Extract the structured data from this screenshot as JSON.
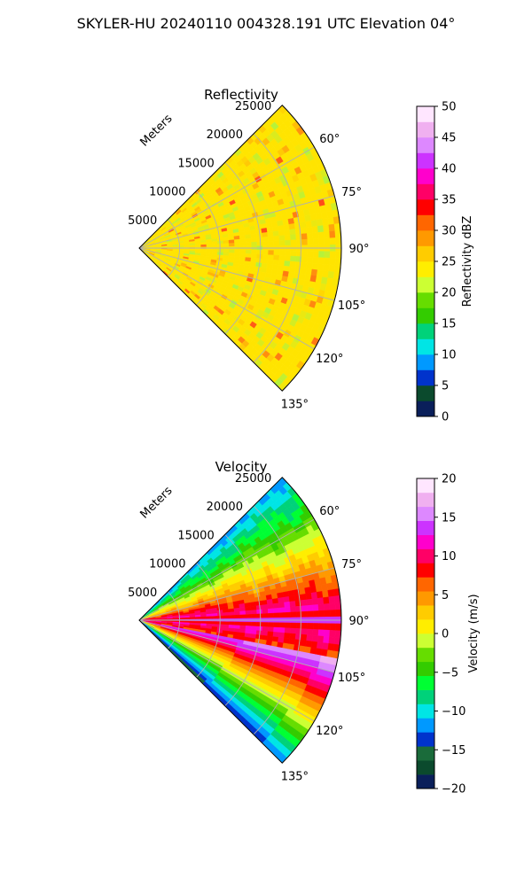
{
  "suptitle": "SKYLER-HU  20240110  004328.191 UTC Elevation 04°",
  "chart_data": [
    {
      "type": "heatmap",
      "title": "Reflectivity",
      "projection": "polar sector (PPI)",
      "radial_label": "Meters",
      "radial_ticks": [
        "5000",
        "10000",
        "15000",
        "20000",
        "25000"
      ],
      "radial_tick_values": [
        5000,
        10000,
        15000,
        20000,
        25000
      ],
      "r_max": 25000,
      "angle_range_deg": [
        45,
        135
      ],
      "angle_ticks": [
        "60°",
        "75°",
        "90°",
        "105°",
        "120°",
        "135°"
      ],
      "angle_tick_values": [
        60,
        75,
        90,
        105,
        120,
        135
      ],
      "grid": true,
      "colorbar": {
        "label": "Reflectivity dBZ",
        "range": [
          0,
          50
        ],
        "ticks": [
          "0",
          "5",
          "10",
          "15",
          "20",
          "25",
          "30",
          "35",
          "40",
          "45",
          "50"
        ],
        "tick_values": [
          0,
          5,
          10,
          15,
          20,
          25,
          30,
          35,
          40,
          45,
          50
        ],
        "colors": [
          "#0a1f5a",
          "#0b4a2d",
          "#0033cc",
          "#0099ff",
          "#00e5e5",
          "#00d27a",
          "#33cc00",
          "#66dd00",
          "#ccff33",
          "#ffee00",
          "#ffcc00",
          "#ff9900",
          "#ff6600",
          "#ff0000",
          "#ff0066",
          "#ff00cc",
          "#cc33ff",
          "#dd88ff",
          "#f0b0f0",
          "#ffe6ff"
        ]
      },
      "field_description_colors": {
        "base": "#ffe400",
        "low": "#b6f23a",
        "high": "#ff4a1a"
      }
    },
    {
      "type": "heatmap",
      "title": "Velocity",
      "projection": "polar sector (PPI)",
      "radial_label": "Meters",
      "radial_ticks": [
        "5000",
        "10000",
        "15000",
        "20000",
        "25000"
      ],
      "radial_tick_values": [
        5000,
        10000,
        15000,
        20000,
        25000
      ],
      "r_max": 25000,
      "angle_range_deg": [
        45,
        135
      ],
      "angle_ticks": [
        "60°",
        "75°",
        "90°",
        "105°",
        "120°",
        "135°"
      ],
      "angle_tick_values": [
        60,
        75,
        90,
        105,
        120,
        135
      ],
      "grid": true,
      "colorbar": {
        "label": "Velocity (m/s)",
        "range": [
          -20,
          20
        ],
        "ticks": [
          "−20",
          "−15",
          "−10",
          "−5",
          "0",
          "5",
          "10",
          "15",
          "20"
        ],
        "tick_values": [
          -20,
          -15,
          -10,
          -5,
          0,
          5,
          10,
          15,
          20
        ],
        "colors": [
          "#0a1f5a",
          "#0b4a2d",
          "#1a6b3a",
          "#0033cc",
          "#0099ff",
          "#00e5e5",
          "#00d27a",
          "#00ff33",
          "#33cc00",
          "#66dd00",
          "#ccff33",
          "#ffee00",
          "#ffcc00",
          "#ff9900",
          "#ff6600",
          "#ff0000",
          "#ff0066",
          "#ff00cc",
          "#cc33ff",
          "#dd88ff",
          "#f0b0f0",
          "#ffe6ff"
        ]
      }
    }
  ]
}
